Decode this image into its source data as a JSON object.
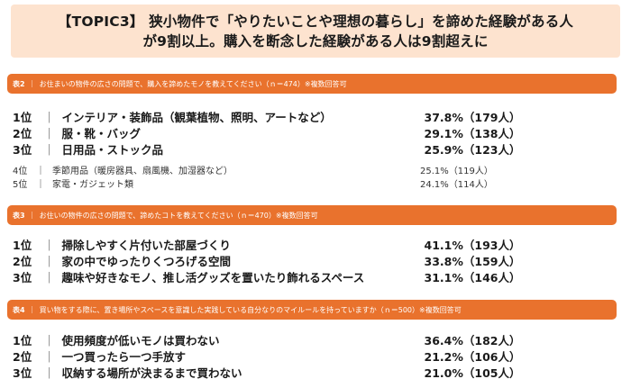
{
  "title": {
    "line1": "【TOPIC3】 狭小物件で「やりたいことや理想の暮らし」を諦めた経験がある人",
    "line2": "が9割以上。購入を断念した経験がある人は9割超えに"
  },
  "tables": [
    {
      "tag": "表2",
      "heading": "お住まいの物件の広さの問題で、購入を諦めたモノを教えてください（ｎ＝474）※複数回答可",
      "main_rows": [
        {
          "rank": "1位",
          "label": "インテリア・装飾品（観葉植物、照明、アートなど）",
          "value": "37.8%（179人）"
        },
        {
          "rank": "2位",
          "label": "服・靴・バッグ",
          "value": "29.1%（138人）"
        },
        {
          "rank": "3位",
          "label": "日用品・ストック品",
          "value": "25.9%（123人）"
        }
      ],
      "sub_rows": [
        {
          "rank": "4位",
          "label": "季節用品（暖房器具、扇風機、加湿器など）",
          "value": "25.1%（119人）"
        },
        {
          "rank": "5位",
          "label": "家電・ガジェット類",
          "value": "24.1%（114人）"
        }
      ]
    },
    {
      "tag": "表3",
      "heading": "お住いの物件の広さの問題で、諦めたコトを教えてください（ｎ＝470）※複数回答可",
      "main_rows": [
        {
          "rank": "1位",
          "label": "掃除しやすく片付いた部屋づくり",
          "value": "41.1%（193人）"
        },
        {
          "rank": "2位",
          "label": "家の中でゆったりくつろげる空間",
          "value": "33.8%（159人）"
        },
        {
          "rank": "3位",
          "label": "趣味や好きなモノ、推し活グッズを置いたり飾れるスペース",
          "value": "31.1%（146人）"
        }
      ]
    },
    {
      "tag": "表4",
      "heading": "買い物をする際に、置き場所やスペースを意識した実践している自分なりのマイルールを持っていますか（ｎ＝500）※複数回答可",
      "main_rows": [
        {
          "rank": "1位",
          "label": "使用頻度が低いモノは買わない",
          "value": "36.4%（182人）"
        },
        {
          "rank": "2位",
          "label": "一つ買ったら一つ手放す",
          "value": "21.2%（106人）"
        },
        {
          "rank": "3位",
          "label": "収納する場所が決まるまで買わない",
          "value": "21.0%（105人）"
        }
      ]
    }
  ],
  "separator": "｜",
  "colors": {
    "accent": "#e9722d",
    "title_bg": "#fde3cf"
  }
}
